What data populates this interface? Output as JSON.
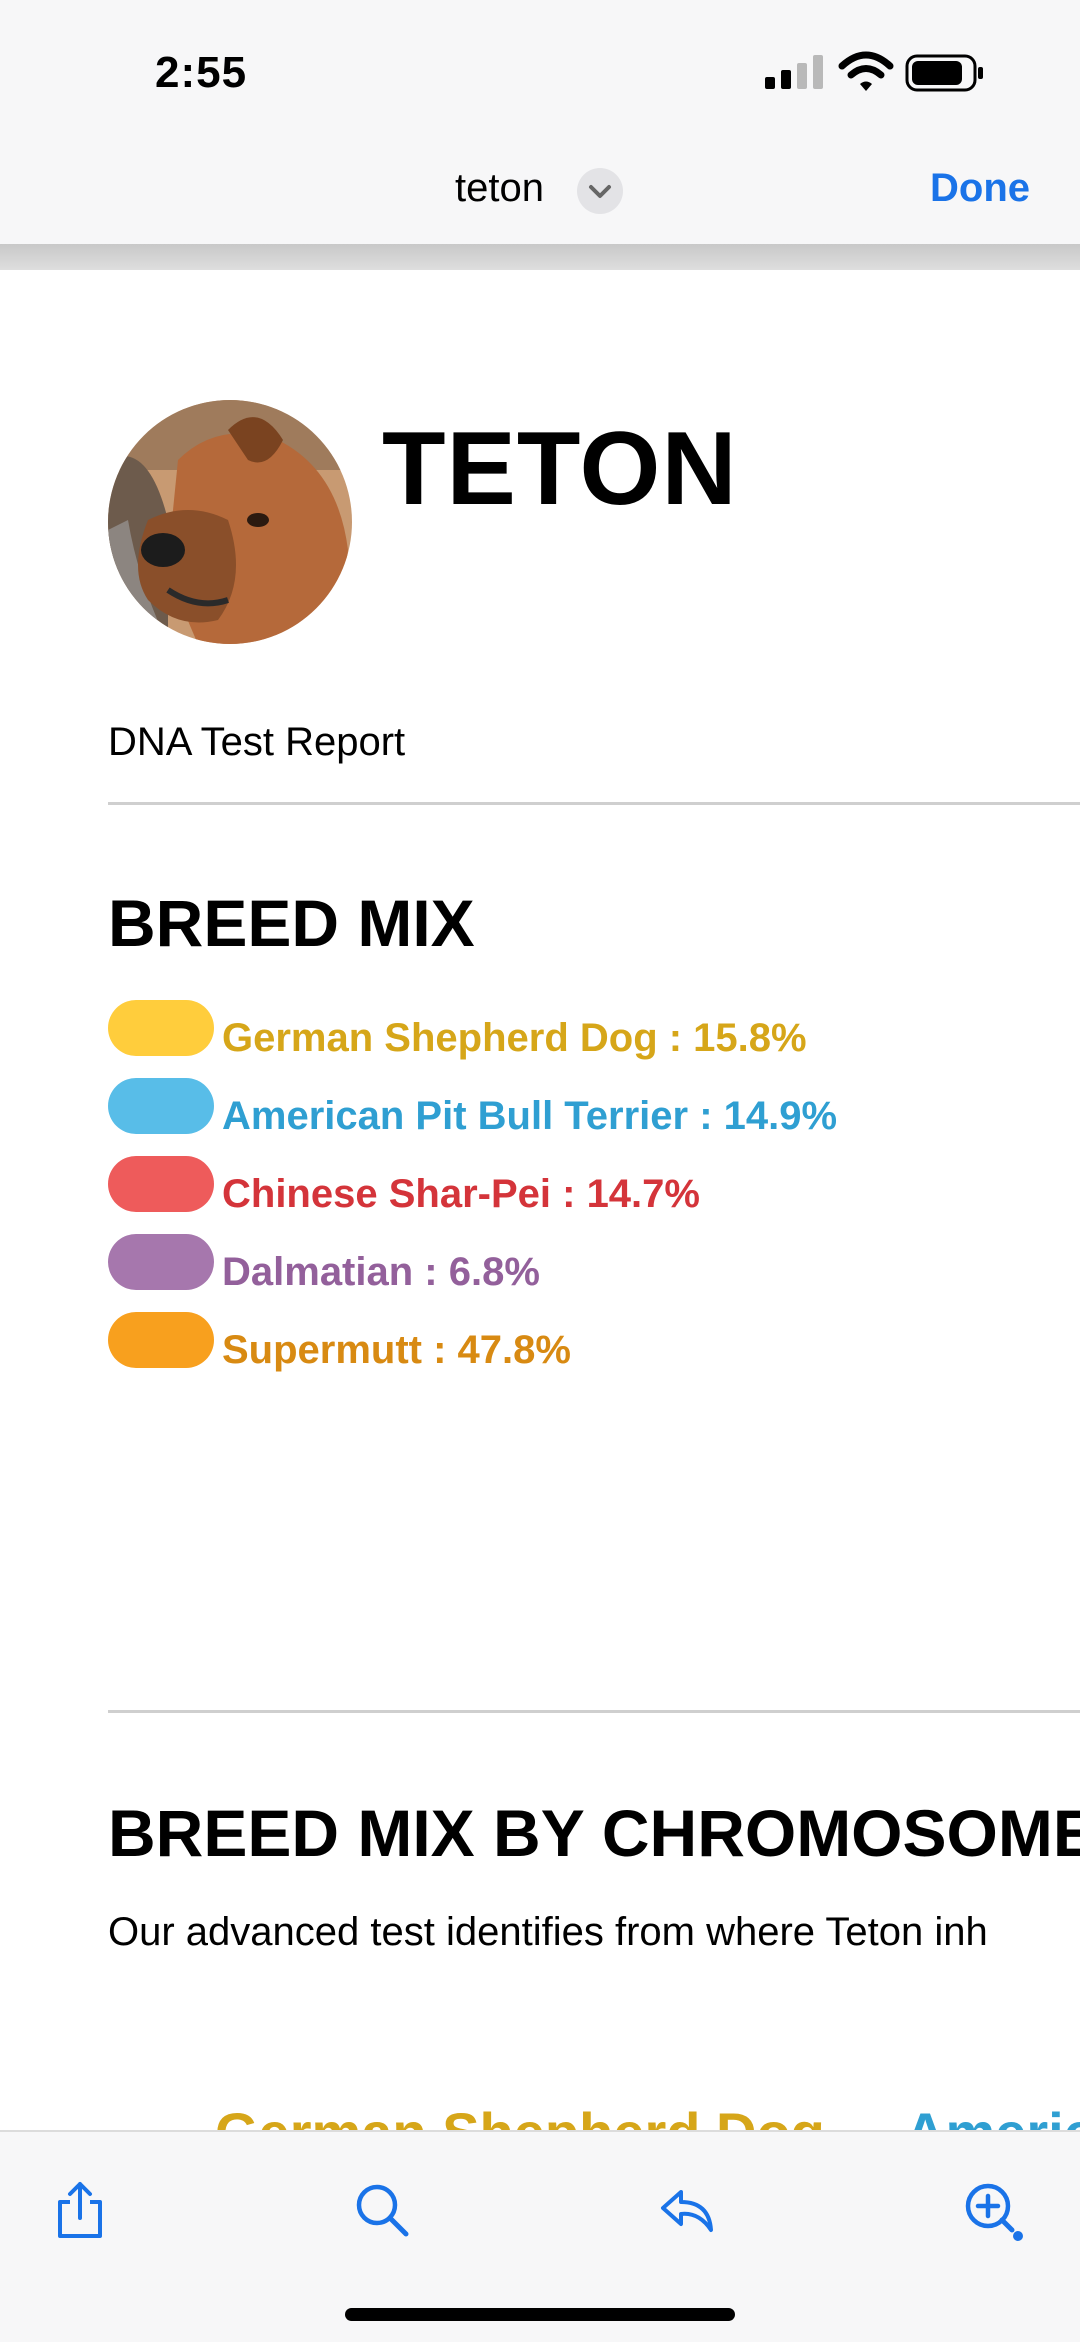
{
  "status": {
    "time": "2:55"
  },
  "nav": {
    "title": "teton",
    "done_label": "Done"
  },
  "report": {
    "dog_name": "TETON",
    "subtitle": "DNA Test Report",
    "section1_title": "BREED MIX",
    "breeds": [
      {
        "name": "German Shepherd Dog",
        "percent": "15.8%",
        "pill_color": "#ffcd3c",
        "text_color": "#d6a619"
      },
      {
        "name": "American Pit Bull Terrier",
        "percent": "14.9%",
        "pill_color": "#58bde8",
        "text_color": "#2f9fd2"
      },
      {
        "name": "Chinese Shar-Pei",
        "percent": "14.7%",
        "pill_color": "#ee5b5b",
        "text_color": "#d4343a"
      },
      {
        "name": "Dalmatian",
        "percent": "6.8%",
        "pill_color": "#a677ad",
        "text_color": "#93609b"
      },
      {
        "name": "Supermutt",
        "percent": "47.8%",
        "pill_color": "#f8a01e",
        "text_color": "#d88a12"
      }
    ],
    "section2_title": "BREED MIX BY CHROMOSOME",
    "section2_desc": "Our advanced test identifies from where Teton inh",
    "cut_labels": [
      "German Shepherd Dog",
      "Americ"
    ]
  },
  "icons": [
    "signal-icon",
    "wifi-icon",
    "battery-icon",
    "chevron-down-icon",
    "share-icon",
    "search-icon",
    "reply-icon",
    "zoom-in-icon"
  ]
}
